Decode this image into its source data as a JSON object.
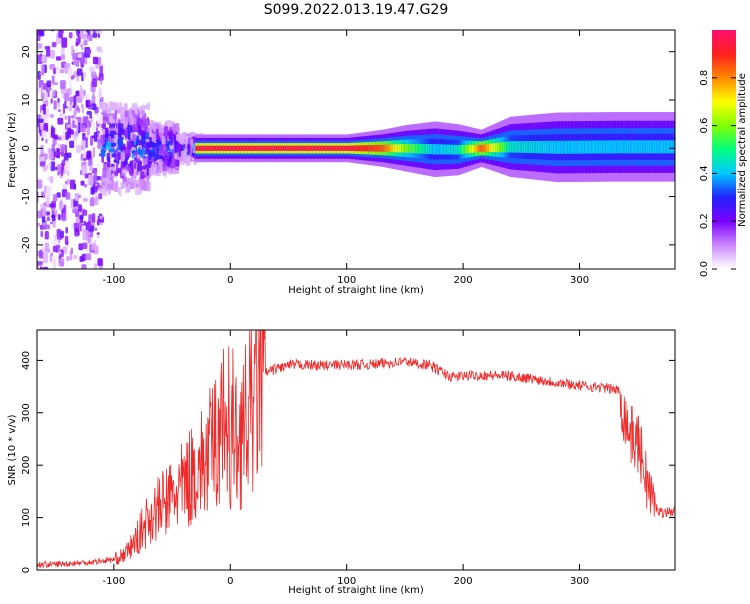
{
  "title": "S099.2022.013.19.47.G29",
  "chart_data": [
    {
      "type": "heatmap",
      "title": "",
      "xlabel": "Height of straight line (km)",
      "ylabel": "Frequency (Hz)",
      "xlim": [
        -166,
        382
      ],
      "ylim": [
        -25,
        24.5
      ],
      "x_ticks": [
        -100,
        0,
        100,
        200,
        300
      ],
      "x_tick_labels": [
        "-100",
        "0",
        "100",
        "200",
        "300"
      ],
      "y_ticks": [
        -20,
        -10,
        0,
        10,
        20
      ],
      "y_tick_labels": [
        "-20",
        "-10",
        "0",
        "10",
        "20"
      ],
      "colorbar": {
        "label": "Normalized spectral amplitude",
        "range": [
          0,
          1
        ],
        "ticks": [
          0.0,
          0.2,
          0.4,
          0.6,
          0.8
        ],
        "tick_labels": [
          "0.0",
          "0.2",
          "0.4",
          "0.6",
          "0.8"
        ],
        "colormap": [
          "#ffffff",
          "#cc88ff",
          "#7a00ff",
          "#2222ff",
          "#00c8ff",
          "#00ff80",
          "#80ff00",
          "#ffff00",
          "#ff8800",
          "#ff2020",
          "#ff1070"
        ]
      },
      "band": [
        {
          "x": -30,
          "center": 0.0,
          "width": 1.2,
          "amplitude": 0.95
        },
        {
          "x": 0,
          "center": 0.0,
          "width": 1.2,
          "amplitude": 0.95
        },
        {
          "x": 100,
          "center": 0.0,
          "width": 1.2,
          "amplitude": 0.95
        },
        {
          "x": 130,
          "center": 0.0,
          "width": 1.6,
          "amplitude": 0.85
        },
        {
          "x": 150,
          "center": 0.0,
          "width": 2.0,
          "amplitude": 0.6
        },
        {
          "x": 175,
          "center": -0.2,
          "width": 2.4,
          "amplitude": 0.4
        },
        {
          "x": 195,
          "center": -0.3,
          "width": 2.2,
          "amplitude": 0.45
        },
        {
          "x": 215,
          "center": 0.0,
          "width": 1.6,
          "amplitude": 0.85
        },
        {
          "x": 240,
          "center": 0.3,
          "width": 2.6,
          "amplitude": 0.45
        },
        {
          "x": 280,
          "center": 0.2,
          "width": 3.0,
          "amplitude": 0.4
        },
        {
          "x": 330,
          "center": 0.3,
          "width": 3.0,
          "amplitude": 0.4
        },
        {
          "x": 382,
          "center": 0.3,
          "width": 3.0,
          "amplitude": 0.4
        }
      ]
    },
    {
      "type": "line",
      "title": "",
      "xlabel": "Height of straight line (km)",
      "ylabel": "SNR (10 * v/v)",
      "xlim": [
        -166,
        382
      ],
      "ylim": [
        0,
        458
      ],
      "x_ticks": [
        -100,
        0,
        100,
        200,
        300
      ],
      "x_tick_labels": [
        "-100",
        "0",
        "100",
        "200",
        "300"
      ],
      "y_ticks": [
        0,
        100,
        200,
        300,
        400
      ],
      "y_tick_labels": [
        "0",
        "100",
        "200",
        "300",
        "400"
      ],
      "line_color": "#ee2a2a",
      "series": [
        {
          "x": [
            -166,
            -140,
            -120,
            -100,
            -90,
            -80,
            -70,
            -60,
            -50,
            -40,
            -30,
            -20,
            -15,
            -10,
            -5,
            0,
            5,
            10,
            15,
            20,
            25,
            30,
            40,
            50,
            60,
            80,
            100,
            120,
            140,
            150,
            160,
            170,
            180,
            190,
            200,
            220,
            240,
            260,
            280,
            300,
            320,
            330,
            335,
            338,
            342,
            346,
            350,
            355,
            360,
            365,
            370,
            382
          ],
          "values": [
            10,
            12,
            15,
            20,
            30,
            60,
            100,
            120,
            140,
            160,
            190,
            210,
            240,
            260,
            280,
            210,
            240,
            260,
            290,
            320,
            360,
            375,
            385,
            390,
            392,
            390,
            392,
            392,
            396,
            398,
            394,
            392,
            380,
            368,
            370,
            372,
            370,
            365,
            358,
            352,
            348,
            345,
            340,
            300,
            270,
            250,
            245,
            200,
            150,
            120,
            110,
            112
          ]
        }
      ]
    }
  ]
}
